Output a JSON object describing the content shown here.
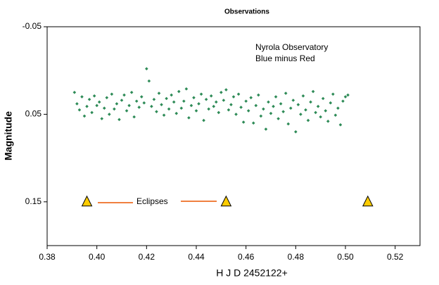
{
  "chart_data": {
    "type": "scatter",
    "title": "Observations",
    "x_label": "H J D  2452122+",
    "y_label": "Magnitude",
    "annotations": [
      "Nyrola Observatory",
      "Blue minus Red",
      "Eclipses"
    ],
    "xlim": [
      0.38,
      0.53
    ],
    "xticks": [
      0.38,
      {
        "value": 0.4,
        "label": "0.40"
      },
      0.42,
      0.44,
      0.46,
      0.48,
      {
        "value": 0.5,
        "label": "0.50"
      },
      0.52
    ],
    "ylim": [
      -0.05,
      0.2
    ],
    "yticks": [
      -0.05,
      0.05,
      0.15
    ],
    "y_inverted": true,
    "grid": false,
    "series": [
      {
        "color": "#2e8b57",
        "marker": "diamond",
        "x": [
          0.391,
          0.392,
          0.393,
          0.394,
          0.395,
          0.396,
          0.397,
          0.398,
          0.399,
          0.4,
          0.401,
          0.402,
          0.403,
          0.404,
          0.405,
          0.406,
          0.407,
          0.408,
          0.409,
          0.41,
          0.411,
          0.412,
          0.413,
          0.414,
          0.415,
          0.416,
          0.417,
          0.418,
          0.419,
          0.42,
          0.421,
          0.422,
          0.423,
          0.424,
          0.425,
          0.426,
          0.427,
          0.428,
          0.429,
          0.43,
          0.431,
          0.432,
          0.433,
          0.434,
          0.435,
          0.436,
          0.437,
          0.438,
          0.439,
          0.44,
          0.441,
          0.442,
          0.443,
          0.444,
          0.445,
          0.446,
          0.447,
          0.448,
          0.449,
          0.45,
          0.451,
          0.452,
          0.453,
          0.454,
          0.455,
          0.456,
          0.457,
          0.458,
          0.459,
          0.46,
          0.461,
          0.462,
          0.463,
          0.464,
          0.465,
          0.466,
          0.467,
          0.468,
          0.469,
          0.47,
          0.471,
          0.472,
          0.473,
          0.474,
          0.475,
          0.476,
          0.477,
          0.478,
          0.479,
          0.48,
          0.481,
          0.482,
          0.483,
          0.484,
          0.485,
          0.486,
          0.487,
          0.488,
          0.489,
          0.49,
          0.491,
          0.492,
          0.493,
          0.494,
          0.495,
          0.496,
          0.497,
          0.498,
          0.499,
          0.5,
          0.501
        ],
        "values": [
          0.025,
          0.038,
          0.045,
          0.03,
          0.052,
          0.041,
          0.033,
          0.048,
          0.029,
          0.04,
          0.036,
          0.055,
          0.043,
          0.031,
          0.05,
          0.027,
          0.044,
          0.038,
          0.056,
          0.034,
          0.028,
          0.046,
          0.04,
          0.025,
          0.053,
          0.035,
          0.042,
          0.03,
          0.037,
          -0.002,
          0.012,
          0.041,
          0.033,
          0.047,
          0.026,
          0.039,
          0.051,
          0.032,
          0.044,
          0.028,
          0.036,
          0.049,
          0.024,
          0.043,
          0.035,
          0.021,
          0.054,
          0.04,
          0.031,
          0.046,
          0.038,
          0.027,
          0.057,
          0.033,
          0.044,
          0.029,
          0.041,
          0.036,
          0.048,
          0.025,
          0.034,
          0.022,
          0.045,
          0.039,
          0.03,
          0.05,
          0.027,
          0.042,
          0.059,
          0.035,
          0.046,
          0.031,
          0.06,
          0.04,
          0.028,
          0.052,
          0.044,
          0.067,
          0.036,
          0.049,
          0.041,
          0.03,
          0.055,
          0.038,
          0.047,
          0.026,
          0.061,
          0.043,
          0.034,
          0.07,
          0.039,
          0.05,
          0.029,
          0.045,
          0.057,
          0.036,
          0.024,
          0.048,
          0.041,
          0.053,
          0.032,
          0.046,
          0.058,
          0.037,
          0.027,
          0.051,
          0.043,
          0.062,
          0.035,
          0.03,
          0.028
        ]
      },
      {
        "color": "#ffcc00",
        "marker": "triangle",
        "x": [
          0.396,
          0.452,
          0.509
        ],
        "values": [
          0.15,
          0.15,
          0.15
        ]
      }
    ]
  }
}
